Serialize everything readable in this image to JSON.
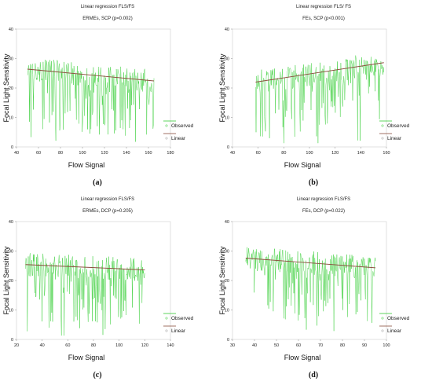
{
  "chart_data": [
    {
      "type": "line",
      "panel_label": "(a)",
      "title": "Linear regression FLS/FS",
      "subtitle": "ERMEs, SCP (p=0.002)",
      "xlabel": "Flow Signal",
      "ylabel": "Focal Light Sensitivity",
      "xlim": [
        40,
        180
      ],
      "ylim": [
        0,
        40
      ],
      "xticks": [
        "40",
        "60",
        "80",
        "100",
        "120",
        "140",
        "160",
        "180"
      ],
      "yticks": [
        "0",
        "10",
        "20",
        "30",
        "40"
      ],
      "series": [
        {
          "name": "Observed",
          "color": "#33cc33",
          "x_range": [
            50,
            165
          ],
          "y_band": [
            1,
            30
          ],
          "noise": 0.55
        },
        {
          "name": "Linear",
          "color": "#8b4c3c",
          "x": [
            50,
            165
          ],
          "y": [
            26.4,
            22.4
          ]
        }
      ],
      "legend": "bottom-right"
    },
    {
      "type": "line",
      "panel_label": "(b)",
      "title": "Linear regression FLS/ FS",
      "subtitle": "FEs, SCP (p<0.001)",
      "xlabel": "Flow Signal",
      "ylabel": "Focal Light Sensitivity",
      "xlim": [
        40,
        160
      ],
      "ylim": [
        0,
        40
      ],
      "xticks": [
        "40",
        "60",
        "80",
        "100",
        "120",
        "140",
        "160"
      ],
      "yticks": [
        "0",
        "10",
        "20",
        "30",
        "40"
      ],
      "series": [
        {
          "name": "Observed",
          "color": "#33cc33",
          "x_range": [
            58,
            158
          ],
          "y_band": [
            1,
            32
          ],
          "noise": 0.45
        },
        {
          "name": "Linear",
          "color": "#8b4c3c",
          "x": [
            58,
            158
          ],
          "y": [
            22,
            28.6
          ]
        }
      ],
      "legend": "bottom-right"
    },
    {
      "type": "line",
      "panel_label": "(c)",
      "title": "Linear regression FLS/FS",
      "subtitle": "ERMEs, DCP (p=0.205)",
      "xlabel": "Flow Signal",
      "ylabel": "Focal Light Sensitivity",
      "xlim": [
        20,
        140
      ],
      "ylim": [
        0,
        40
      ],
      "xticks": [
        "20",
        "40",
        "60",
        "80",
        "100",
        "120",
        "140"
      ],
      "yticks": [
        "0",
        "10",
        "20",
        "30",
        "40"
      ],
      "series": [
        {
          "name": "Observed",
          "color": "#33cc33",
          "x_range": [
            27,
            120
          ],
          "y_band": [
            1,
            30
          ],
          "noise": 0.5
        },
        {
          "name": "Linear",
          "color": "#8b4c3c",
          "x": [
            27,
            120
          ],
          "y": [
            25.4,
            23.6
          ]
        }
      ],
      "legend": "bottom-right"
    },
    {
      "type": "line",
      "panel_label": "(d)",
      "title": "Linear regression FLS/FS",
      "subtitle": "FEs, DCP (p=0.022)",
      "xlabel": "Flow Signal",
      "ylabel": "Focal Light Sensitivity",
      "xlim": [
        30,
        100
      ],
      "ylim": [
        0,
        40
      ],
      "xticks": [
        "30",
        "40",
        "50",
        "60",
        "70",
        "80",
        "90",
        "100"
      ],
      "yticks": [
        "0",
        "10",
        "20",
        "30",
        "40"
      ],
      "series": [
        {
          "name": "Observed",
          "color": "#33cc33",
          "x_range": [
            36,
            95
          ],
          "y_band": [
            2,
            33
          ],
          "noise": 0.5
        },
        {
          "name": "Linear",
          "color": "#8b4c3c",
          "x": [
            36,
            95
          ],
          "y": [
            27.6,
            24.3
          ]
        }
      ],
      "legend": "bottom-right"
    }
  ]
}
